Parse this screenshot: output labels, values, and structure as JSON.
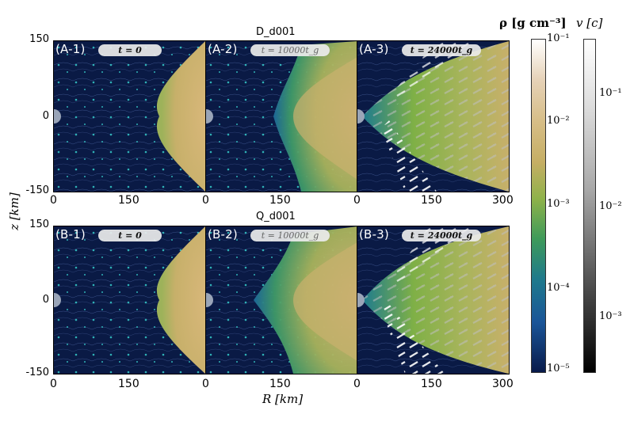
{
  "row_a": {
    "title": "D_d001",
    "panels": [
      {
        "label": "(A-1)",
        "time": "t = 0"
      },
      {
        "label": "(A-2)",
        "time": "t = 10000t_g"
      },
      {
        "label": "(A-3)",
        "time": "t = 24000t_g"
      }
    ]
  },
  "row_b": {
    "title": "Q_d001",
    "panels": [
      {
        "label": "(B-1)",
        "time": "t = 0"
      },
      {
        "label": "(B-2)",
        "time": "t = 10000t_g"
      },
      {
        "label": "(B-3)",
        "time": "t = 24000t_g"
      }
    ]
  },
  "axes": {
    "x_label": "R [km]",
    "y_label": "z [km]",
    "x_ticks": [
      "0",
      "150",
      "0",
      "150",
      "0",
      "150",
      "300"
    ],
    "y_ticks": [
      "150",
      "0",
      "-150"
    ]
  },
  "colorbar_density": {
    "title": "ρ [g cm⁻³]",
    "ticks": [
      "10⁻¹",
      "10⁻²",
      "10⁻³",
      "10⁻⁴",
      "10⁻⁵"
    ],
    "colors": [
      "#ffffff",
      "#e0c8a8",
      "#c8ad6a",
      "#7fb046",
      "#2f8f5a",
      "#1e7a8c",
      "#164f8c",
      "#081a4a"
    ]
  },
  "colorbar_velocity": {
    "title": "v [c]",
    "ticks": [
      "10⁻¹",
      "10⁻²",
      "10⁻³"
    ]
  },
  "colors": {
    "background": "#0a1a45",
    "streamline": "#5f79b8",
    "marker": "#38d6d2",
    "disk": "#d1b071"
  }
}
